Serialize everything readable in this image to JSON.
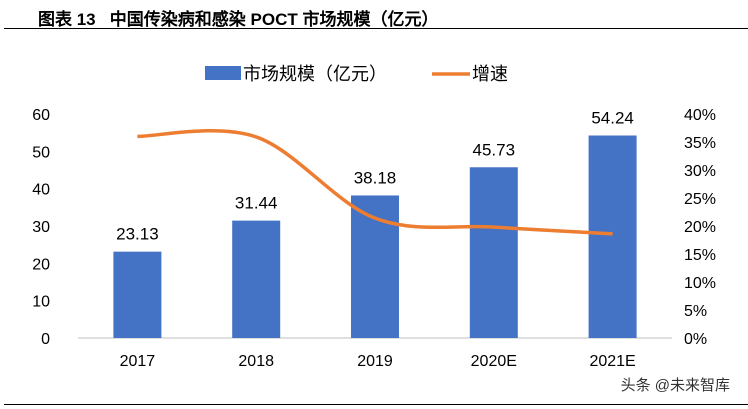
{
  "title": "图表 13   中国传染病和感染 POCT 市场规模（亿元）",
  "watermark": "头条 @未来智库",
  "chart_data": {
    "type": "bar+line",
    "categories": [
      "2017",
      "2018",
      "2019",
      "2020E",
      "2021E"
    ],
    "series": [
      {
        "name": "市场规模（亿元）",
        "type": "bar",
        "axis": "left",
        "color": "#4472C4",
        "values": [
          23.13,
          31.44,
          38.18,
          45.73,
          54.24
        ],
        "labels": [
          "23.13",
          "31.44",
          "38.18",
          "45.73",
          "54.24"
        ]
      },
      {
        "name": "增速",
        "type": "line",
        "axis": "right",
        "color": "#ED7D31",
        "values": [
          0.36,
          0.359,
          0.214,
          0.198,
          0.186
        ]
      }
    ],
    "ylim": [
      0,
      60
    ],
    "yticks": [
      "0",
      "10",
      "20",
      "30",
      "40",
      "50",
      "60"
    ],
    "y2lim": [
      0,
      0.4
    ],
    "y2ticks": [
      "0%",
      "5%",
      "10%",
      "15%",
      "20%",
      "25%",
      "30%",
      "35%",
      "40%"
    ],
    "legend": "top-center"
  }
}
